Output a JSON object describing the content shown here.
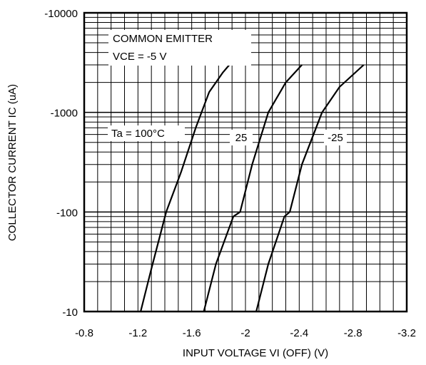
{
  "chart_data": {
    "type": "line",
    "xlabel": "INPUT VOLTAGE   VI (OFF) (V)",
    "ylabel": "COLLECTOR CURRENT   IC (uA)",
    "xlim": [
      -0.8,
      -3.2
    ],
    "ylim": [
      -10,
      -10000
    ],
    "y_scale": "log",
    "grid": true,
    "x_ticks": [
      "-0.8",
      "-1.2",
      "-1.6",
      "-2",
      "-2.4",
      "-2.8",
      "-3.2"
    ],
    "y_ticks": [
      "-10000",
      "-1000",
      "-100",
      "-10"
    ],
    "annotations": {
      "line1": "COMMON EMITTER",
      "line2": "VCE = -5 V",
      "temp": "Ta = 100°C"
    },
    "series": [
      {
        "name": "Ta = 100°C",
        "label": "",
        "x": [
          -1.22,
          -1.3,
          -1.41,
          -1.52,
          -1.63,
          -1.73,
          -1.83,
          -1.88
        ],
        "y": [
          -10,
          -27,
          -100,
          -250,
          -700,
          -1600,
          -2500,
          -3000
        ]
      },
      {
        "name": "25",
        "label": "25",
        "x": [
          -1.69,
          -1.78,
          -1.91,
          -1.96,
          -2.05,
          -2.17,
          -2.3,
          -2.42
        ],
        "y": [
          -10,
          -30,
          -90,
          -100,
          -300,
          -1000,
          -2000,
          -3000
        ]
      },
      {
        "name": "-25",
        "label": "-25",
        "x": [
          -2.08,
          -2.17,
          -2.29,
          -2.33,
          -2.42,
          -2.57,
          -2.7,
          -2.88
        ],
        "y": [
          -10,
          -30,
          -90,
          -100,
          -300,
          -1000,
          -1800,
          -3000
        ]
      }
    ]
  }
}
